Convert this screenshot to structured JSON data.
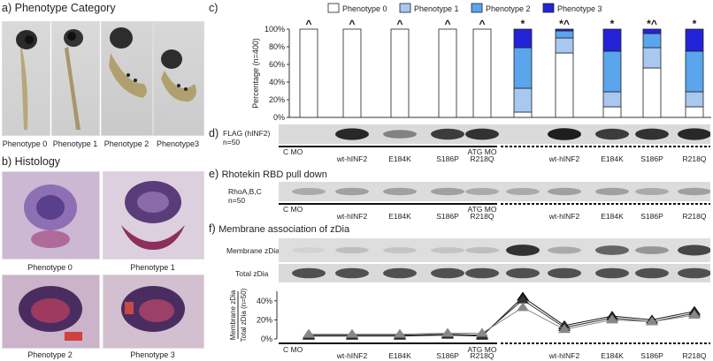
{
  "panel_a": {
    "letter": "a)",
    "title": "Phenotype Category",
    "captions": [
      "Phenotype 0",
      "Phenotype 1",
      "Phenotype 2",
      "Phenotype3"
    ]
  },
  "panel_b": {
    "letter": "b)",
    "title": "Histology",
    "captions": [
      "Phenotype 0",
      "Phenotype 1",
      "Phenotype 2",
      "Phenotype 3"
    ]
  },
  "panel_c": {
    "letter": "c)"
  },
  "panel_d": {
    "letter": "d)",
    "row_label": "FLAG (hINF2)",
    "n_label": "n=50"
  },
  "panel_e": {
    "letter": "e)",
    "title": "Rhotekin RBD pull down",
    "row_label": "RhoA,B,C",
    "n_label": "n=50"
  },
  "panel_f": {
    "letter": "f)",
    "title": "Membrane association of zDia",
    "row1_label": "Membrane zDia",
    "row2_label": "Total zDia",
    "plot_ylabel_top": "Membrane zDia",
    "plot_ylabel_bottom": "Total zDia (n=50)"
  },
  "lane_labels": [
    "wt-hINF2",
    "E184K",
    "S186P",
    "R218Q",
    "wt-hINF2",
    "E184K",
    "S186P",
    "R218Q"
  ],
  "group_labels": {
    "control": "C MO",
    "atg": "ATG MO"
  },
  "colors": {
    "phenotype0": "#ffffff",
    "phenotype1": "#a9c8ef",
    "phenotype2": "#5aa5ec",
    "phenotype3": "#2323d8"
  },
  "chart_data": [
    {
      "type": "bar",
      "stacked": true,
      "ylabel": "Percentage (n=400)",
      "ylim": [
        0,
        100
      ],
      "yticks": [
        "0%",
        "20%",
        "40%",
        "60%",
        "80%",
        "100%"
      ],
      "legend": [
        "Phenotype 0",
        "Phenotype 1",
        "Phenotype 2",
        "Phenotype 3"
      ],
      "legend_position": "top",
      "bars": [
        {
          "values": [
            100,
            0,
            0,
            0
          ],
          "mark": "^"
        },
        {
          "values": [
            100,
            0,
            0,
            0
          ],
          "mark": "^"
        },
        {
          "values": [
            100,
            0,
            0,
            0
          ],
          "mark": "^"
        },
        {
          "values": [
            100,
            0,
            0,
            0
          ],
          "mark": "^"
        },
        {
          "values": [
            100,
            0,
            0,
            0
          ],
          "mark": "^"
        },
        {
          "values": [
            6,
            27,
            46,
            21
          ],
          "mark": "*"
        },
        {
          "values": [
            73,
            17,
            8,
            2
          ],
          "mark": "*^"
        },
        {
          "values": [
            12,
            17,
            46,
            25
          ],
          "mark": "*"
        },
        {
          "values": [
            56,
            23,
            16,
            5
          ],
          "mark": "*^"
        },
        {
          "values": [
            12,
            17,
            46,
            25
          ],
          "mark": "*"
        }
      ]
    },
    {
      "type": "line",
      "ylim": [
        0,
        50
      ],
      "yticks": [
        "0%",
        "20%",
        "40%"
      ],
      "series": [
        {
          "values": [
            3,
            3,
            3,
            4,
            3,
            44,
            14,
            24,
            20,
            29
          ]
        },
        {
          "values": [
            4,
            4,
            4,
            5,
            4,
            41,
            12,
            22,
            18,
            27
          ]
        },
        {
          "values": [
            5,
            5,
            5,
            6,
            6,
            33,
            10,
            20,
            18,
            25
          ]
        }
      ]
    }
  ]
}
